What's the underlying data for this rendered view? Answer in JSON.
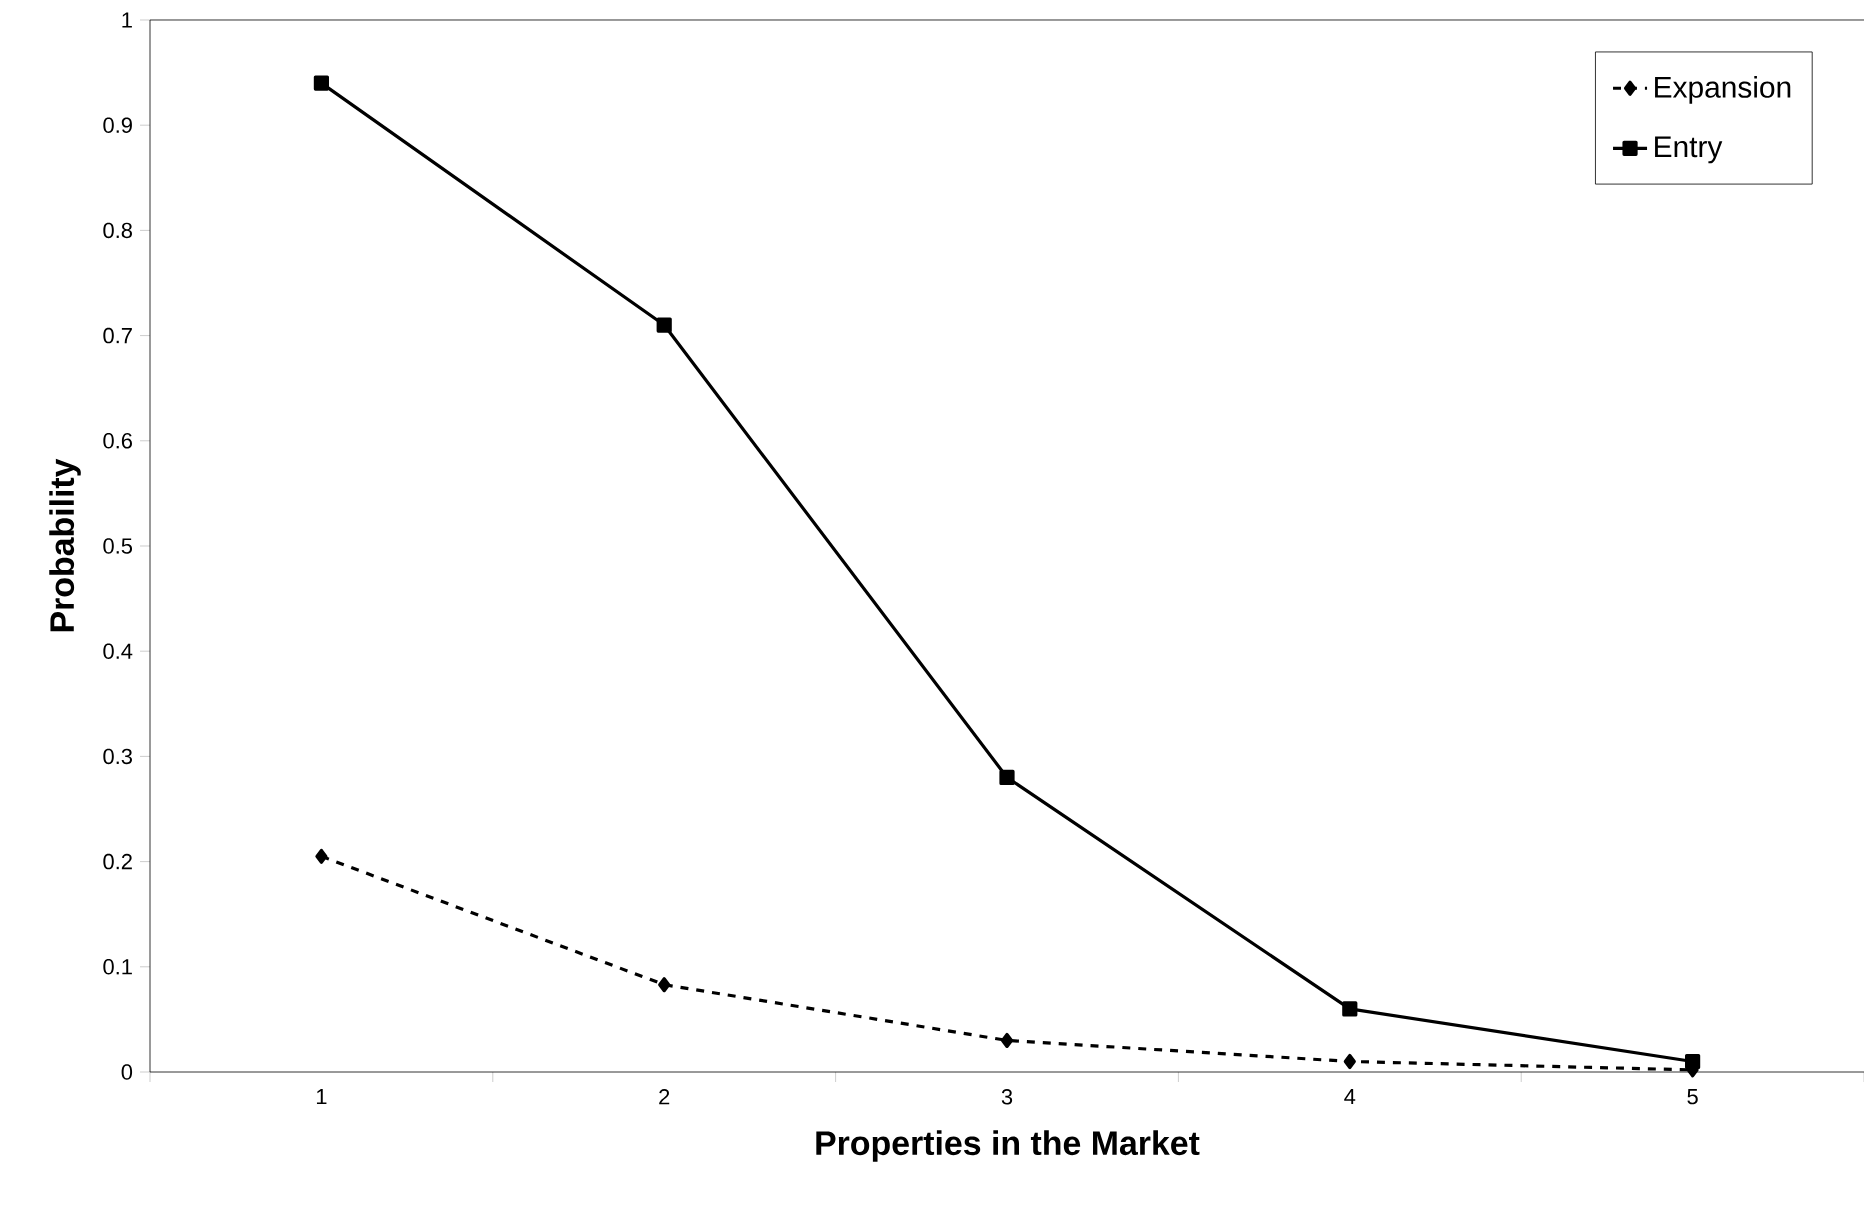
{
  "chart_data": {
    "type": "line",
    "xlabel": "Properties in the Market",
    "ylabel": "Probability",
    "categories": [
      "1",
      "2",
      "3",
      "4",
      "5"
    ],
    "series": [
      {
        "name": "Expansion",
        "color": "#000000",
        "values": [
          0.205,
          0.083,
          0.03,
          0.01,
          0.002
        ],
        "marker": "diamond",
        "line_style": "dashed"
      },
      {
        "name": "Entry",
        "color": "#000000",
        "values": [
          0.94,
          0.71,
          0.28,
          0.06,
          0.01
        ],
        "marker": "square",
        "line_style": "solid"
      }
    ],
    "ylim": [
      0,
      1
    ],
    "yticks": [
      0,
      0.1,
      0.2,
      0.3,
      0.4,
      0.5,
      0.6,
      0.7,
      0.8,
      0.9,
      1
    ],
    "grid": false,
    "legend": "top right"
  }
}
